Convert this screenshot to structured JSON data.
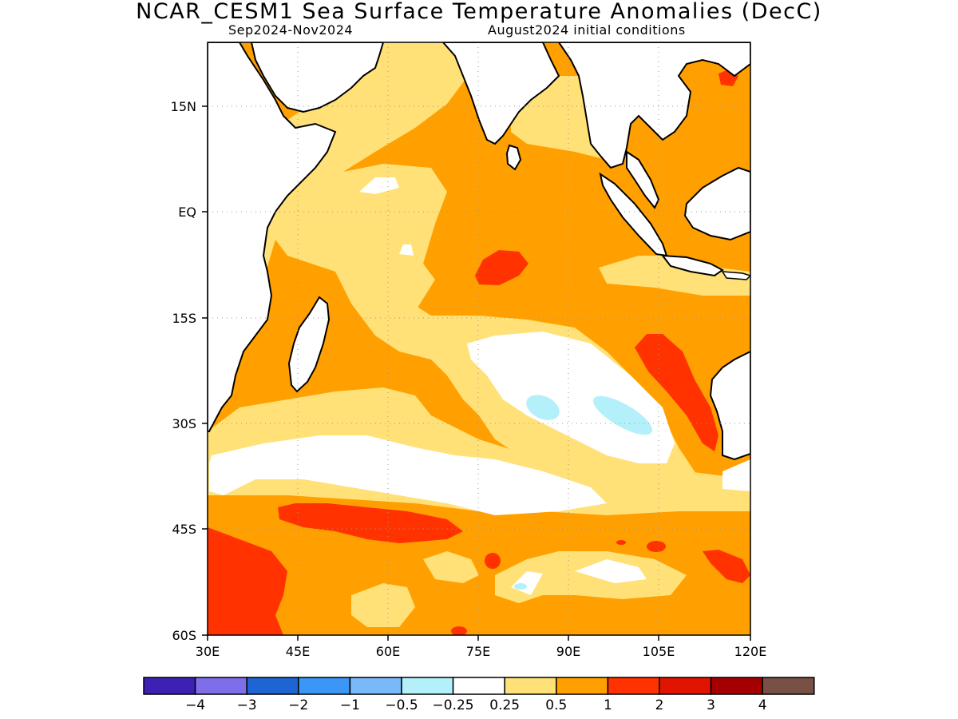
{
  "title": "NCAR_CESM1 Sea Surface Temperature Anomalies (DecC)",
  "subtitle_left": "Sep2024-Nov2024",
  "subtitle_right": "August2024 initial conditions",
  "map": {
    "region": "Indian Ocean",
    "lon_range": [
      30,
      120
    ],
    "lat_range": [
      -60,
      24
    ],
    "x_ticks": [
      "30E",
      "45E",
      "60E",
      "75E",
      "90E",
      "105E",
      "120E"
    ],
    "y_ticks": [
      "15N",
      "EQ",
      "15S",
      "30S",
      "45S",
      "60S"
    ],
    "grid": "dotted"
  },
  "chart_data": {
    "type": "heatmap",
    "title": "NCAR_CESM1 Sea Surface Temperature Anomalies (DecC)",
    "xlim": [
      30,
      120
    ],
    "ylim": [
      -60,
      24
    ],
    "x_tick_labels": [
      "30E",
      "45E",
      "60E",
      "75E",
      "90E",
      "105E",
      "120E"
    ],
    "y_tick_labels": [
      "15N",
      "EQ",
      "15S",
      "30S",
      "45S",
      "60S"
    ],
    "colorbar": {
      "colors": [
        "#3c21b4",
        "#7f6ee9",
        "#1e64d2",
        "#3c96f5",
        "#78b9fa",
        "#b4f0fa",
        "#ffffff",
        "#ffe178",
        "#ffa000",
        "#ff3200",
        "#e11400",
        "#a50000",
        "#785046"
      ],
      "tick_labels": [
        "-4",
        "-3",
        "-2",
        "-1",
        "-0.5",
        "-0.25",
        "0.25",
        "0.5",
        "1",
        "2",
        "3",
        "4"
      ]
    }
  }
}
